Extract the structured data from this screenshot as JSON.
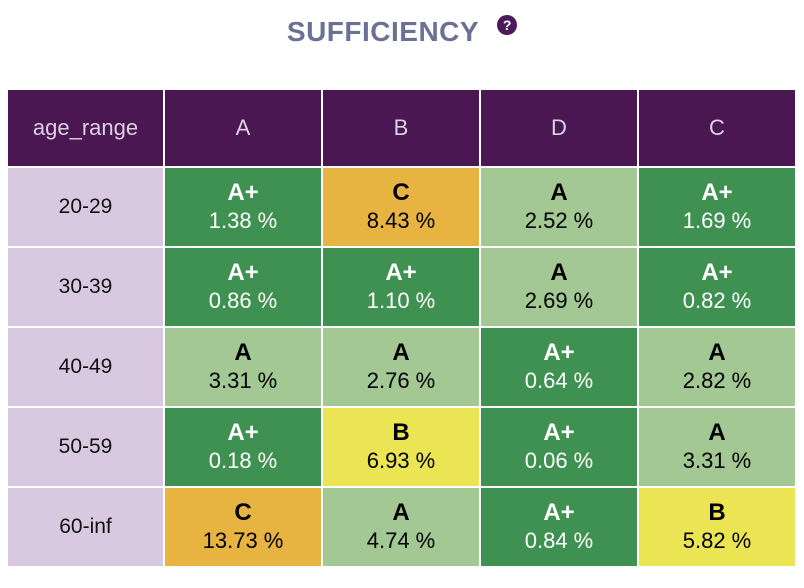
{
  "title": "SUFFICIENCY",
  "help_glyph": "?",
  "chart_data": {
    "type": "table",
    "title": "SUFFICIENCY",
    "row_header": "age_range",
    "columns": [
      "A",
      "B",
      "D",
      "C"
    ],
    "rows": [
      {
        "label": "20-29",
        "cells": [
          {
            "grade": "A+",
            "value": "1.38 %"
          },
          {
            "grade": "C",
            "value": "8.43 %"
          },
          {
            "grade": "A",
            "value": "2.52 %"
          },
          {
            "grade": "A+",
            "value": "1.69 %"
          }
        ]
      },
      {
        "label": "30-39",
        "cells": [
          {
            "grade": "A+",
            "value": "0.86 %"
          },
          {
            "grade": "A+",
            "value": "1.10 %"
          },
          {
            "grade": "A",
            "value": "2.69 %"
          },
          {
            "grade": "A+",
            "value": "0.82 %"
          }
        ]
      },
      {
        "label": "40-49",
        "cells": [
          {
            "grade": "A",
            "value": "3.31 %"
          },
          {
            "grade": "A",
            "value": "2.76 %"
          },
          {
            "grade": "A+",
            "value": "0.64 %"
          },
          {
            "grade": "A",
            "value": "2.82 %"
          }
        ]
      },
      {
        "label": "50-59",
        "cells": [
          {
            "grade": "A+",
            "value": "0.18 %"
          },
          {
            "grade": "B",
            "value": "6.93 %"
          },
          {
            "grade": "A+",
            "value": "0.06 %"
          },
          {
            "grade": "A",
            "value": "3.31 %"
          }
        ]
      },
      {
        "label": "60-inf",
        "cells": [
          {
            "grade": "C",
            "value": "13.73 %"
          },
          {
            "grade": "A",
            "value": "4.74 %"
          },
          {
            "grade": "A+",
            "value": "0.84 %"
          },
          {
            "grade": "B",
            "value": "5.82 %"
          }
        ]
      }
    ],
    "grade_colors": {
      "A+": {
        "bg": "#3f9152",
        "fg": "#ffffff"
      },
      "A": {
        "bg": "#a3c893",
        "fg": "#000000"
      },
      "B": {
        "bg": "#ece553",
        "fg": "#000000"
      },
      "C": {
        "bg": "#e8b441",
        "fg": "#000000"
      }
    }
  }
}
